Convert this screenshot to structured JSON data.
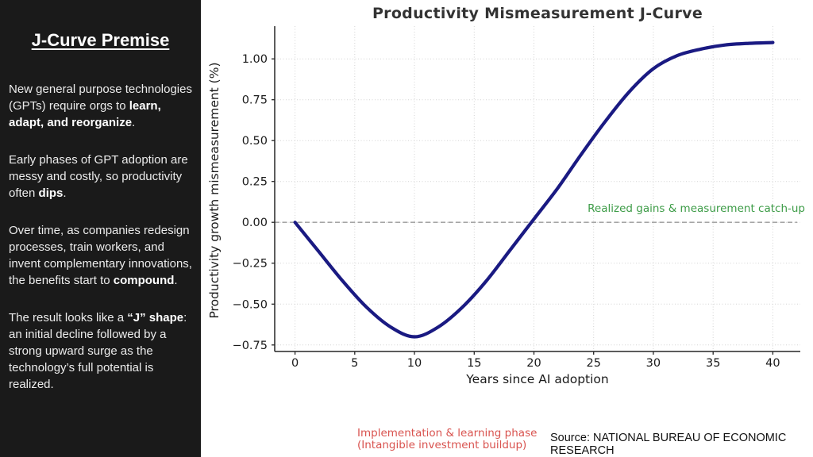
{
  "sidebar": {
    "title": "J-Curve Premise",
    "paragraphs": [
      {
        "segments": [
          {
            "text": "New general purpose technologies (GPTs) require orgs to ",
            "bold": false
          },
          {
            "text": "learn, adapt, and reorganize",
            "bold": true
          },
          {
            "text": ".",
            "bold": false
          }
        ]
      },
      {
        "segments": [
          {
            "text": "Early phases of GPT adoption are messy and costly, so productivity often ",
            "bold": false
          },
          {
            "text": "dips",
            "bold": true
          },
          {
            "text": ".",
            "bold": false
          }
        ]
      },
      {
        "segments": [
          {
            "text": "Over time, as companies redesign processes, train workers, and invent complementary innovations, the benefits start to ",
            "bold": false
          },
          {
            "text": "compound",
            "bold": true
          },
          {
            "text": ".",
            "bold": false
          }
        ]
      },
      {
        "segments": [
          {
            "text": "The result looks like a ",
            "bold": false
          },
          {
            "text": "“J” shape",
            "bold": true
          },
          {
            "text": ": an initial decline followed by a strong upward surge as the technology’s full potential is realized.",
            "bold": false
          }
        ]
      }
    ]
  },
  "chart_data": {
    "type": "line",
    "title": "Productivity Mismeasurement J-Curve",
    "xlabel": "Years since AI adoption",
    "ylabel": "Productivity growth mismeasurement (%)",
    "xlim": [
      -1.7,
      42.3
    ],
    "ylim": [
      -0.79,
      1.2
    ],
    "grid": true,
    "grid_style": "dotted",
    "x_ticks": [
      {
        "v": 0,
        "label": "0"
      },
      {
        "v": 5,
        "label": "5"
      },
      {
        "v": 10,
        "label": "10"
      },
      {
        "v": 15,
        "label": "15"
      },
      {
        "v": 20,
        "label": "20"
      },
      {
        "v": 25,
        "label": "25"
      },
      {
        "v": 30,
        "label": "30"
      },
      {
        "v": 35,
        "label": "35"
      },
      {
        "v": 40,
        "label": "40"
      }
    ],
    "y_ticks": [
      {
        "v": -0.75,
        "label": "−0.75"
      },
      {
        "v": -0.5,
        "label": "−0.50"
      },
      {
        "v": -0.25,
        "label": "−0.25"
      },
      {
        "v": 0.0,
        "label": "0.00"
      },
      {
        "v": 0.25,
        "label": "0.25"
      },
      {
        "v": 0.5,
        "label": "0.50"
      },
      {
        "v": 0.75,
        "label": "0.75"
      },
      {
        "v": 1.0,
        "label": "1.00"
      }
    ],
    "line_color": "#1a1a82",
    "grid_color": "#d4d4d4",
    "spine_color": "#262626",
    "zero_line": {
      "y": 0,
      "style": "dashed",
      "color": "#999999"
    },
    "series": [
      {
        "name": "Productivity growth mismeasurement",
        "x": [
          0,
          2,
          4,
          6,
          8,
          10,
          12,
          14,
          16,
          18,
          20,
          22,
          24,
          26,
          28,
          30,
          32,
          34,
          36,
          38,
          40
        ],
        "y": [
          0.0,
          -0.18,
          -0.36,
          -0.52,
          -0.64,
          -0.7,
          -0.64,
          -0.52,
          -0.36,
          -0.17,
          0.02,
          0.21,
          0.42,
          0.62,
          0.8,
          0.94,
          1.02,
          1.06,
          1.085,
          1.095,
          1.1
        ]
      }
    ],
    "annotations": {
      "realized_gains": {
        "text": "Realized gains & measurement catch-up",
        "color": "#3d9c47"
      },
      "implementation_phase": {
        "line1": "Implementation & learning phase",
        "line2": "(Intangible investment buildup)",
        "color": "#d9534f"
      }
    }
  },
  "footer": {
    "source": "Source: NATIONAL BUREAU OF ECONOMIC RESEARCH"
  }
}
